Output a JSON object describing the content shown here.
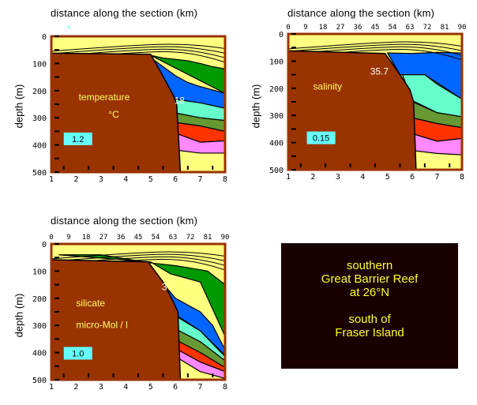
{
  "chart_data": [
    {
      "type": "heatmap",
      "panel": "temperature",
      "title": "distance along the section (km)",
      "xlabel": "distance along the section (km)",
      "ylabel": "depth (m)",
      "x_ticks": [
        "1",
        "2",
        "3",
        "4",
        "5",
        "6",
        "7",
        "8"
      ],
      "top_km_ticks": [],
      "y_ticks": [
        "0",
        "100",
        "200",
        "300",
        "400",
        "500"
      ],
      "xlim": [
        1,
        8
      ],
      "ylim": [
        0,
        500
      ],
      "variable_label": "temperature",
      "unit_label": "°C",
      "contour_label": "18",
      "contour_interval": "1.2",
      "bottom_profile": [
        [
          1,
          62
        ],
        [
          2,
          66
        ],
        [
          3,
          66
        ],
        [
          4,
          66
        ],
        [
          5,
          66
        ],
        [
          5.4,
          130
        ],
        [
          5.9,
          215
        ],
        [
          6.1,
          250
        ],
        [
          6.2,
          500
        ]
      ],
      "layers": [
        {
          "color": "#ffff80",
          "name": "warm surface"
        },
        {
          "color": "#009900",
          "name": "green"
        },
        {
          "color": "#0066ff",
          "name": "blue"
        },
        {
          "color": "#66ffcc",
          "name": "aqua"
        },
        {
          "color": "#669933",
          "name": "olive"
        },
        {
          "color": "#ff3300",
          "name": "red"
        },
        {
          "color": "#ff88ff",
          "name": "pink"
        },
        {
          "color": "#ffff80",
          "name": "deep yellow"
        }
      ]
    },
    {
      "type": "heatmap",
      "panel": "salinity",
      "title": "distance along the section (km)",
      "xlabel": "distance along the section (km)",
      "ylabel": "depth (m)",
      "x_ticks": [
        "1",
        "2",
        "3",
        "4",
        "5",
        "6",
        "7",
        "8"
      ],
      "top_km_ticks": [
        "0",
        "9",
        "18",
        "27",
        "36",
        "45",
        "54",
        "63",
        "72",
        "81",
        "90"
      ],
      "y_ticks": [
        "0",
        "100",
        "200",
        "300",
        "400",
        "500"
      ],
      "xlim": [
        1,
        8
      ],
      "ylim": [
        0,
        500
      ],
      "variable_label": "salinity",
      "unit_label": "",
      "contour_label": "35.7",
      "contour_interval": "0.15",
      "layers": [
        {
          "color": "#ffff80"
        },
        {
          "color": "#009900"
        },
        {
          "color": "#0066ff"
        },
        {
          "color": "#66ffcc"
        },
        {
          "color": "#669933"
        },
        {
          "color": "#ff3300"
        },
        {
          "color": "#ff88ff"
        },
        {
          "color": "#ffff80"
        }
      ]
    },
    {
      "type": "heatmap",
      "panel": "silicate",
      "title": "distance along the section (km)",
      "xlabel": "distance along the section (km)",
      "ylabel": "depth (m)",
      "x_ticks": [
        "1",
        "2",
        "3",
        "4",
        "5",
        "6",
        "7",
        "8"
      ],
      "top_km_ticks": [
        "0",
        "9",
        "18",
        "27",
        "36",
        "45",
        "54",
        "63",
        "72",
        "81",
        "90"
      ],
      "y_ticks": [
        "0",
        "100",
        "200",
        "300",
        "400",
        "500"
      ],
      "xlim": [
        1,
        8
      ],
      "ylim": [
        0,
        500
      ],
      "variable_label": "silicate",
      "unit_label": "micro-Mol / l",
      "contour_label": "3",
      "contour_interval": "1.0",
      "layers": [
        {
          "color": "#ffff80"
        },
        {
          "color": "#009900"
        },
        {
          "color": "#0066ff"
        },
        {
          "color": "#66ffcc"
        },
        {
          "color": "#669933"
        },
        {
          "color": "#ff3300"
        },
        {
          "color": "#ff88ff"
        },
        {
          "color": "#ffff80"
        }
      ]
    }
  ],
  "colors": {
    "seabed": "#993300",
    "interval_box": "#66ffff",
    "label_text": "#ffff66",
    "info_bg": "#1a0000",
    "info_text": "#ffff33"
  },
  "info_box": {
    "lines1": [
      "southern",
      "Great Barrier Reef",
      "at 26°N"
    ],
    "lines2": [
      "south of",
      "Fraser Island"
    ]
  }
}
